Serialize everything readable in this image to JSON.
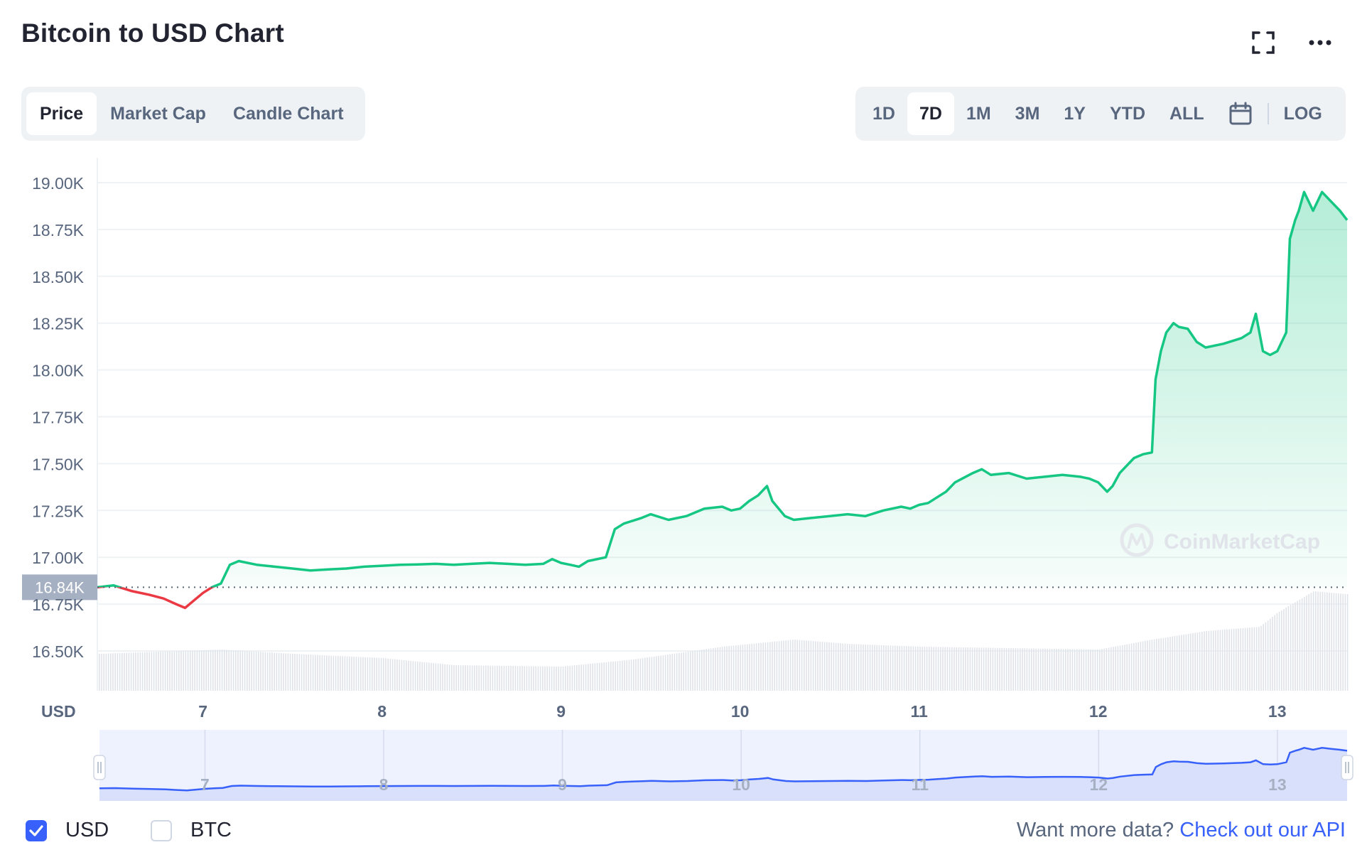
{
  "header": {
    "title": "Bitcoin to USD Chart"
  },
  "toolbar": {
    "chart_types": [
      "Price",
      "Market Cap",
      "Candle Chart"
    ],
    "active_type": "Price",
    "ranges": [
      "1D",
      "7D",
      "1M",
      "3M",
      "1Y",
      "YTD",
      "ALL"
    ],
    "active_range": "7D",
    "log_label": "LOG"
  },
  "chart_data": {
    "type": "line",
    "title": "Bitcoin to USD Chart",
    "currency_label": "USD",
    "ylim": [
      16400,
      19050
    ],
    "yticks": [
      16500,
      16750,
      17000,
      17250,
      17500,
      17750,
      18000,
      18250,
      18500,
      18750,
      19000
    ],
    "ytick_labels": [
      "16.50K",
      "16.75K",
      "17.00K",
      "17.25K",
      "17.50K",
      "17.75K",
      "18.00K",
      "18.25K",
      "18.50K",
      "18.75K",
      "19.00K"
    ],
    "xlim": [
      6.41,
      13.39
    ],
    "xticks": [
      7,
      8,
      9,
      10,
      11,
      12,
      13
    ],
    "xtick_labels": [
      "7",
      "8",
      "9",
      "10",
      "11",
      "12",
      "13"
    ],
    "reference_price": 16840,
    "reference_label": "16.84K",
    "grid": true,
    "colors": {
      "up": "#16c784",
      "down": "#ea3943",
      "navigator": "#3861fb"
    },
    "series": [
      {
        "x": [
          6.41,
          6.5,
          6.6,
          6.7,
          6.78,
          6.85,
          6.9,
          6.95,
          7.0,
          7.05,
          7.1,
          7.15,
          7.2,
          7.3,
          7.4,
          7.5,
          7.6,
          7.7,
          7.8,
          7.9,
          8.0,
          8.1,
          8.2,
          8.3,
          8.4,
          8.5,
          8.6,
          8.7,
          8.8,
          8.9,
          8.95,
          9.0,
          9.05,
          9.1,
          9.15,
          9.25,
          9.3,
          9.35,
          9.45,
          9.5,
          9.6,
          9.7,
          9.8,
          9.9,
          9.95,
          10.0,
          10.05,
          10.1,
          10.15,
          10.18,
          10.25,
          10.3,
          10.4,
          10.5,
          10.6,
          10.7,
          10.8,
          10.9,
          10.95,
          11.0,
          11.05,
          11.1,
          11.15,
          11.2,
          11.3,
          11.35,
          11.4,
          11.5,
          11.6,
          11.7,
          11.8,
          11.9,
          11.95,
          12.0,
          12.05,
          12.08,
          12.12,
          12.2,
          12.25,
          12.3,
          12.32,
          12.35,
          12.38,
          12.42,
          12.45,
          12.5,
          12.55,
          12.6,
          12.7,
          12.8,
          12.85,
          12.88,
          12.92,
          12.96,
          13.0,
          13.05,
          13.07,
          13.1,
          13.12,
          13.15,
          13.2,
          13.25,
          13.3,
          13.35,
          13.39
        ],
        "y": [
          16840,
          16850,
          16820,
          16800,
          16780,
          16750,
          16730,
          16770,
          16810,
          16840,
          16860,
          16960,
          16980,
          16960,
          16950,
          16940,
          16930,
          16935,
          16940,
          16950,
          16955,
          16960,
          16962,
          16965,
          16960,
          16965,
          16970,
          16965,
          16960,
          16965,
          16990,
          16970,
          16960,
          16950,
          16980,
          17000,
          17150,
          17180,
          17210,
          17230,
          17200,
          17220,
          17260,
          17270,
          17250,
          17260,
          17300,
          17330,
          17380,
          17300,
          17220,
          17200,
          17210,
          17220,
          17230,
          17220,
          17250,
          17270,
          17260,
          17280,
          17290,
          17320,
          17350,
          17400,
          17450,
          17470,
          17440,
          17450,
          17420,
          17430,
          17440,
          17430,
          17420,
          17400,
          17350,
          17380,
          17450,
          17530,
          17550,
          17560,
          17950,
          18100,
          18200,
          18250,
          18230,
          18220,
          18150,
          18120,
          18140,
          18170,
          18200,
          18300,
          18100,
          18080,
          18100,
          18200,
          18700,
          18800,
          18850,
          18950,
          18850,
          18950,
          18900,
          18850,
          18800
        ]
      }
    ],
    "volume": {
      "x": [
        6.41,
        7.1,
        7.5,
        8.0,
        8.4,
        9.0,
        9.4,
        9.9,
        10.3,
        10.6,
        11.0,
        11.5,
        12.0,
        12.3,
        12.6,
        12.9,
        13.0,
        13.2,
        13.39
      ],
      "y": [
        0.26,
        0.29,
        0.26,
        0.23,
        0.18,
        0.17,
        0.22,
        0.31,
        0.36,
        0.33,
        0.31,
        0.3,
        0.29,
        0.36,
        0.42,
        0.45,
        0.55,
        0.7,
        0.68
      ]
    },
    "navigator": {
      "xtick_labels": [
        "7",
        "8",
        "9",
        "10",
        "11",
        "12",
        "13"
      ]
    }
  },
  "legend": {
    "usd_label": "USD",
    "btc_label": "BTC",
    "usd_checked": true,
    "btc_checked": false
  },
  "api": {
    "prompt": "Want more data?",
    "link_text": "Check out our API"
  },
  "watermark": {
    "text": "CoinMarketCap"
  }
}
